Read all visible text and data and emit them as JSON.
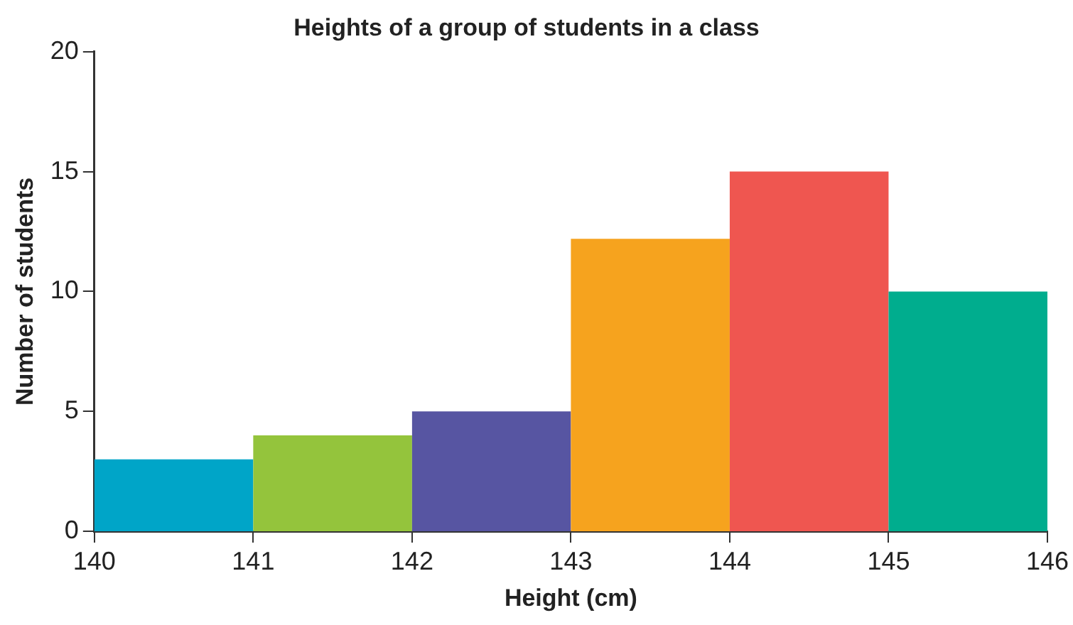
{
  "chart_data": {
    "type": "histogram",
    "title": "Heights of a group of students in a class",
    "xlabel": "Height (cm)",
    "ylabel": "Number of students",
    "bins": [
      140,
      141,
      142,
      143,
      144,
      145,
      146
    ],
    "values": [
      3,
      4,
      5,
      12.2,
      15,
      10
    ],
    "colors": [
      "#00a5c8",
      "#94c43c",
      "#5755a2",
      "#f6a31e",
      "#ef5650",
      "#00ad8e"
    ],
    "xlim": [
      140,
      146
    ],
    "xticks": [
      140,
      141,
      142,
      143,
      144,
      145,
      146
    ],
    "ylim": [
      0,
      20
    ],
    "yticks": [
      0,
      5,
      10,
      15,
      20
    ],
    "grid": false,
    "legend": false
  }
}
